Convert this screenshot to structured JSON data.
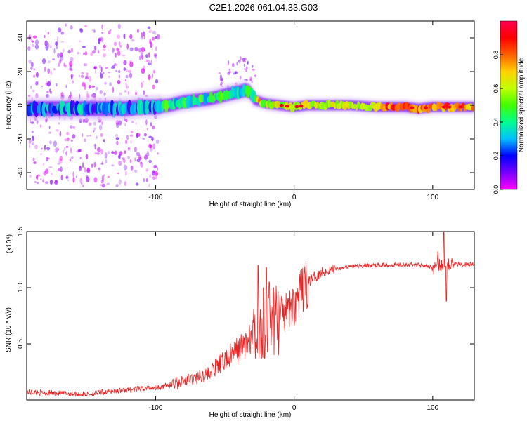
{
  "figure_title": "C2E1.2026.061.04.33.G03",
  "chart_data": [
    {
      "type": "heatmap",
      "title": "C2E1.2026.061.04.33.G03",
      "xlabel": "Height of straight line (km)",
      "ylabel": "Frequency (Hz)",
      "xlim": [
        -193,
        130
      ],
      "ylim": [
        -50,
        50
      ],
      "xticks": [
        -100,
        0,
        100
      ],
      "xtick_labels": [
        "-100",
        "0",
        "100"
      ],
      "yticks": [
        -40,
        -20,
        0,
        20,
        40
      ],
      "ytick_labels": [
        "-40",
        "-20",
        "0",
        "20",
        "40"
      ],
      "colorbar": {
        "label": "Normalized spectral amplitude",
        "range": [
          0,
          1
        ],
        "ticks": [
          0.0,
          0.2,
          0.4,
          0.6,
          0.8
        ],
        "tick_labels": [
          "0.0",
          "0.2",
          "0.4",
          "0.6",
          "0.8"
        ],
        "colormap": [
          "#ff00ff",
          "#7700ff",
          "#0000ff",
          "#00c0ff",
          "#00ff90",
          "#40ff00",
          "#c0ff00",
          "#ffd000",
          "#ff6000",
          "#ff0000",
          "#ff0050"
        ]
      },
      "center_track": [
        [
          -193,
          -2
        ],
        [
          -160,
          -2
        ],
        [
          -140,
          -2
        ],
        [
          -120,
          -2
        ],
        [
          -110,
          -1
        ],
        [
          -100,
          -1
        ],
        [
          -90,
          0
        ],
        [
          -80,
          2
        ],
        [
          -70,
          3
        ],
        [
          -60,
          4
        ],
        [
          -50,
          6
        ],
        [
          -40,
          8
        ],
        [
          -35,
          9
        ],
        [
          -32,
          8
        ],
        [
          -28,
          3
        ],
        [
          -20,
          1
        ],
        [
          -10,
          0
        ],
        [
          0,
          -1
        ],
        [
          10,
          0
        ],
        [
          20,
          0
        ],
        [
          40,
          0
        ],
        [
          60,
          -1
        ],
        [
          80,
          -1
        ],
        [
          90,
          -2
        ],
        [
          100,
          -1
        ],
        [
          110,
          -1
        ],
        [
          130,
          -1
        ]
      ]
    },
    {
      "type": "line",
      "xlabel": "Height of straight line (km)",
      "ylabel": "SNR (10 * v/v)",
      "y_scale_label": "(x10⁴)",
      "xlim": [
        -193,
        130
      ],
      "ylim": [
        0,
        1.5
      ],
      "xticks": [
        -100,
        0,
        100
      ],
      "xtick_labels": [
        "-100",
        "0",
        "100"
      ],
      "yticks": [
        0.5,
        1.0,
        1.5
      ],
      "ytick_labels": [
        "0.5",
        "1.0",
        "1.5"
      ],
      "color": "#ee2222",
      "series": [
        {
          "name": "SNR",
          "envelope": [
            [
              -193,
              0.07
            ],
            [
              -170,
              0.06
            ],
            [
              -150,
              0.05
            ],
            [
              -130,
              0.08
            ],
            [
              -110,
              0.1
            ],
            [
              -95,
              0.12
            ],
            [
              -85,
              0.15
            ],
            [
              -75,
              0.18
            ],
            [
              -65,
              0.22
            ],
            [
              -60,
              0.25
            ],
            [
              -55,
              0.3
            ],
            [
              -50,
              0.35
            ],
            [
              -45,
              0.4
            ],
            [
              -40,
              0.45
            ],
            [
              -35,
              0.5
            ],
            [
              -30,
              0.55
            ],
            [
              -25,
              0.6
            ],
            [
              -20,
              0.65
            ],
            [
              -15,
              0.72
            ],
            [
              -10,
              0.75
            ],
            [
              -5,
              0.78
            ],
            [
              0,
              0.85
            ],
            [
              5,
              0.95
            ],
            [
              10,
              1.05
            ],
            [
              15,
              1.1
            ],
            [
              20,
              1.14
            ],
            [
              30,
              1.17
            ],
            [
              40,
              1.19
            ],
            [
              60,
              1.2
            ],
            [
              80,
              1.21
            ],
            [
              95,
              1.2
            ],
            [
              100,
              1.17
            ],
            [
              105,
              1.2
            ],
            [
              110,
              1.22
            ],
            [
              115,
              1.21
            ],
            [
              120,
              1.21
            ],
            [
              130,
              1.21
            ]
          ],
          "spikes": [
            [
              -26,
              1.2
            ],
            [
              -20,
              1.18
            ],
            [
              -22,
              1.0
            ],
            [
              -18,
              1.05
            ],
            [
              -15,
              1.0
            ],
            [
              108,
              1.5
            ],
            [
              110,
              0.88
            ],
            [
              104,
              1.32
            ]
          ]
        }
      ]
    }
  ]
}
